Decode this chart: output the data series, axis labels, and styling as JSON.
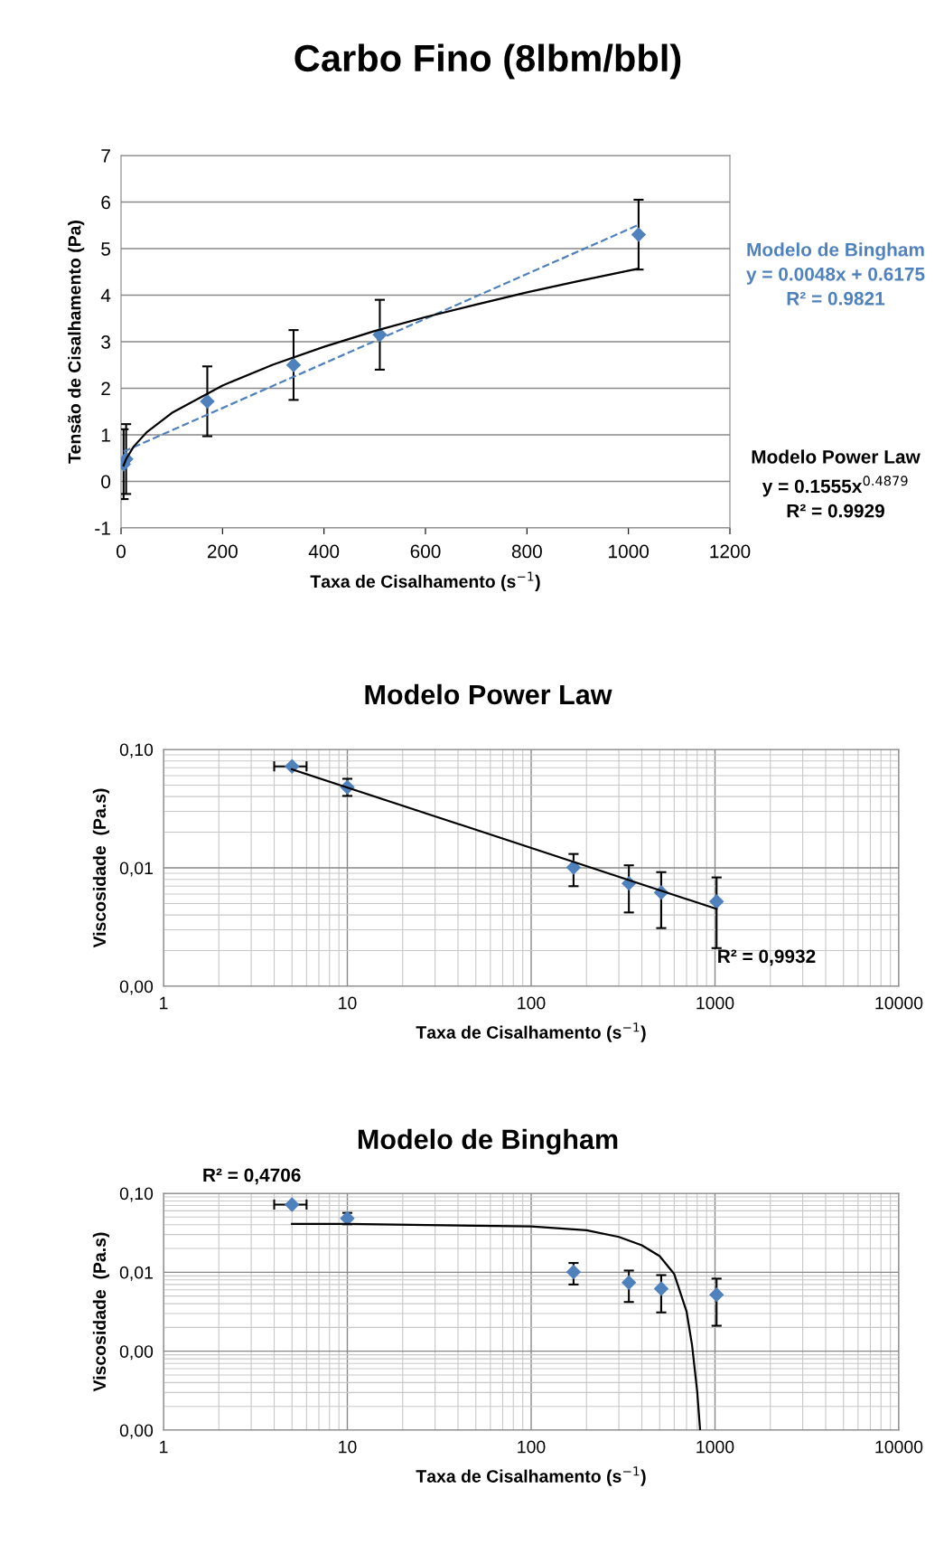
{
  "chart_data": [
    {
      "type": "scatter",
      "title": "Carbo Fino (8lbm/bbl)",
      "xlabel": "Taxa de Cisalhamento (s$^{−1}$)",
      "ylabel": "Tensão de Cisalhamento (Pa)",
      "xlim": [
        0,
        1200
      ],
      "xticks": [
        0,
        200,
        400,
        600,
        800,
        1000,
        1200
      ],
      "ylim": [
        -1,
        7
      ],
      "yticks": [
        -1,
        0,
        1,
        2,
        3,
        4,
        5,
        6,
        7
      ],
      "grid": "y",
      "marker": "diamond",
      "series": [
        {
          "color": "#4f81bd",
          "x": [
            5,
            10,
            170,
            340,
            510,
            1020
          ],
          "values": [
            0.37,
            0.48,
            1.72,
            2.5,
            3.15,
            5.3
          ],
          "errors": [
            0.75,
            0.75,
            0.75,
            0.75,
            0.75,
            0.75
          ]
        },
        {
          "type": "line",
          "name": "Modelo de Bingham\ny = 0.0048x + 0.6175\nR² = 0.9821",
          "color": "#4f81bd",
          "line_style": "dashed",
          "marker": "none",
          "x": [
            5,
            1020
          ],
          "values": [
            0.64,
            5.51
          ]
        },
        {
          "type": "line",
          "name": "Modelo Power Law\ny = 0.1555x$^{0.4879}$\nR² = 0.9929",
          "color": "#000000",
          "line_style": "solid",
          "marker": "none",
          "x": [
            5,
            10,
            25,
            50,
            100,
            200,
            300,
            400,
            500,
            600,
            700,
            800,
            900,
            1020
          ],
          "values": [
            0.34,
            0.48,
            0.75,
            1.05,
            1.47,
            2.06,
            2.51,
            2.89,
            3.23,
            3.53,
            3.8,
            4.06,
            4.3,
            4.57
          ]
        }
      ]
    },
    {
      "type": "scatter",
      "title": "Modelo Power Law",
      "xlabel": "Taxa de Cisalhamento (s$^{−1}$)",
      "ylabel": "Viscosidade  (Pa.s)",
      "log": "xy",
      "xlim": [
        1,
        10000
      ],
      "xticks": [
        1,
        10,
        100,
        1000,
        10000
      ],
      "ylim": [
        0.001,
        0.1
      ],
      "yticks": [
        {
          "value": 0.001,
          "label": "0,00"
        },
        {
          "value": 0.01,
          "label": "0,01"
        },
        {
          "value": 0.1,
          "label": "0,10"
        }
      ],
      "grid": true,
      "marker": "diamond",
      "annotations": [
        "R² = 0,9932"
      ],
      "series": [
        {
          "color": "#4f81bd",
          "x": [
            5,
            10,
            170,
            340,
            510,
            1020
          ],
          "values": [
            0.072,
            0.048,
            0.0101,
            0.0074,
            0.0062,
            0.0052
          ],
          "errors": [
            null,
            [
              0.0405,
              0.0565
            ],
            [
              0.007,
              0.0131
            ],
            [
              0.0042,
              0.0105
            ],
            [
              0.0031,
              0.0092
            ],
            [
              0.0021,
              0.0083
            ]
          ],
          "xerrors": [
            [
              4,
              6
            ],
            null,
            null,
            null,
            null,
            null
          ]
        },
        {
          "type": "line",
          "color": "#000000",
          "line_style": "solid",
          "marker": "none",
          "x": [
            5,
            1020
          ],
          "values": [
            0.068,
            0.0045
          ]
        }
      ]
    },
    {
      "type": "scatter",
      "title": "Modelo de Bingham",
      "xlabel": "Taxa de Cisalhamento (s$^{−1}$)",
      "ylabel": "Viscosidade  (Pa.s)",
      "log": "xy",
      "xlim": [
        1,
        10000
      ],
      "xticks": [
        1,
        10,
        100,
        1000,
        10000
      ],
      "ylim": [
        0.0001,
        0.1
      ],
      "yticks": [
        {
          "value": 0.0001,
          "label": "0,00"
        },
        {
          "value": 0.001,
          "label": "0,00"
        },
        {
          "value": 0.01,
          "label": "0,01"
        },
        {
          "value": 0.1,
          "label": "0,10"
        }
      ],
      "grid": true,
      "marker": "diamond",
      "annotations": [
        "R² = 0,4706"
      ],
      "series": [
        {
          "color": "#4f81bd",
          "x": [
            5,
            10,
            170,
            340,
            510,
            1020
          ],
          "values": [
            0.072,
            0.048,
            0.0101,
            0.0074,
            0.0062,
            0.0052
          ],
          "errors": [
            null,
            [
              0.0405,
              0.0565
            ],
            [
              0.007,
              0.0131
            ],
            [
              0.0042,
              0.0105
            ],
            [
              0.0031,
              0.0092
            ],
            [
              0.0021,
              0.0083
            ]
          ],
          "xerrors": [
            [
              4,
              6
            ],
            null,
            null,
            null,
            null,
            null
          ]
        },
        {
          "type": "line",
          "color": "#000000",
          "line_style": "solid",
          "marker": "none",
          "x": [
            5,
            10,
            100,
            200,
            300,
            400,
            500,
            600,
            700,
            750,
            800,
            830
          ],
          "values": [
            0.041,
            0.041,
            0.038,
            0.034,
            0.028,
            0.022,
            0.016,
            0.0095,
            0.0032,
            0.0012,
            0.00031,
            0.0001
          ]
        }
      ]
    }
  ]
}
